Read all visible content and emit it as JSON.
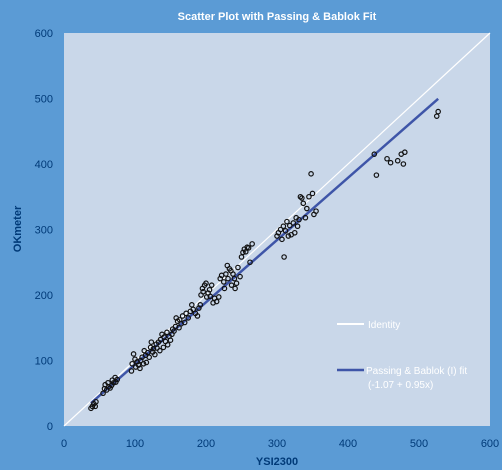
{
  "chart_data": {
    "type": "scatter",
    "title": "Scatter Plot with Passing & Bablok Fit",
    "xlabel": "YSI2300",
    "ylabel": "OKmeter",
    "xlim": [
      0,
      600
    ],
    "ylim": [
      0,
      600
    ],
    "xticks": [
      "0",
      "100",
      "200",
      "300",
      "400",
      "500",
      "600"
    ],
    "yticks": [
      "0",
      "100",
      "200",
      "300",
      "400",
      "500",
      "600"
    ],
    "grid": false,
    "legend_position": "bottom-right",
    "colors": {
      "background": "#5b9bd5",
      "plot_area": "#c9d7e9",
      "axis_text": "#003a78",
      "identity_line": "#ffffff",
      "fit_line": "#3e55a8",
      "points": "#111111"
    },
    "series": [
      {
        "name": "",
        "kind": "points",
        "points": [
          [
            38,
            27
          ],
          [
            40,
            30
          ],
          [
            42,
            34
          ],
          [
            44,
            30
          ],
          [
            45,
            37
          ],
          [
            55,
            50
          ],
          [
            57,
            57
          ],
          [
            58,
            63
          ],
          [
            60,
            55
          ],
          [
            62,
            66
          ],
          [
            63,
            60
          ],
          [
            65,
            58
          ],
          [
            67,
            62
          ],
          [
            68,
            70
          ],
          [
            70,
            66
          ],
          [
            72,
            74
          ],
          [
            73,
            67
          ],
          [
            75,
            71
          ],
          [
            95,
            84
          ],
          [
            96,
            95
          ],
          [
            98,
            110
          ],
          [
            100,
            102
          ],
          [
            101,
            90
          ],
          [
            103,
            98
          ],
          [
            105,
            93
          ],
          [
            107,
            88
          ],
          [
            108,
            100
          ],
          [
            110,
            105
          ],
          [
            112,
            95
          ],
          [
            113,
            115
          ],
          [
            115,
            108
          ],
          [
            116,
            97
          ],
          [
            118,
            112
          ],
          [
            120,
            105
          ],
          [
            122,
            120
          ],
          [
            123,
            128
          ],
          [
            125,
            113
          ],
          [
            126,
            118
          ],
          [
            128,
            109
          ],
          [
            130,
            125
          ],
          [
            131,
            119
          ],
          [
            133,
            128
          ],
          [
            135,
            115
          ],
          [
            136,
            132
          ],
          [
            138,
            140
          ],
          [
            140,
            120
          ],
          [
            141,
            136
          ],
          [
            143,
            129
          ],
          [
            145,
            143
          ],
          [
            146,
            124
          ],
          [
            148,
            137
          ],
          [
            150,
            131
          ],
          [
            152,
            140
          ],
          [
            153,
            148
          ],
          [
            155,
            145
          ],
          [
            157,
            152
          ],
          [
            158,
            165
          ],
          [
            160,
            160
          ],
          [
            162,
            150
          ],
          [
            163,
            162
          ],
          [
            165,
            156
          ],
          [
            167,
            168
          ],
          [
            170,
            158
          ],
          [
            172,
            172
          ],
          [
            175,
            165
          ],
          [
            178,
            175
          ],
          [
            180,
            185
          ],
          [
            182,
            178
          ],
          [
            185,
            172
          ],
          [
            188,
            168
          ],
          [
            190,
            180
          ],
          [
            192,
            185
          ],
          [
            193,
            200
          ],
          [
            195,
            210
          ],
          [
            196,
            205
          ],
          [
            198,
            215
          ],
          [
            200,
            218
          ],
          [
            201,
            197
          ],
          [
            203,
            203
          ],
          [
            205,
            208
          ],
          [
            206,
            198
          ],
          [
            208,
            215
          ],
          [
            210,
            188
          ],
          [
            212,
            195
          ],
          [
            215,
            190
          ],
          [
            218,
            197
          ],
          [
            220,
            225
          ],
          [
            222,
            230
          ],
          [
            225,
            220
          ],
          [
            226,
            210
          ],
          [
            228,
            232
          ],
          [
            230,
            245
          ],
          [
            231,
            225
          ],
          [
            233,
            240
          ],
          [
            235,
            237
          ],
          [
            236,
            215
          ],
          [
            238,
            232
          ],
          [
            240,
            225
          ],
          [
            241,
            210
          ],
          [
            243,
            218
          ],
          [
            245,
            242
          ],
          [
            248,
            228
          ],
          [
            250,
            258
          ],
          [
            252,
            265
          ],
          [
            254,
            270
          ],
          [
            256,
            266
          ],
          [
            258,
            273
          ],
          [
            260,
            272
          ],
          [
            262,
            250
          ],
          [
            265,
            278
          ],
          [
            300,
            290
          ],
          [
            302,
            295
          ],
          [
            305,
            300
          ],
          [
            307,
            285
          ],
          [
            309,
            305
          ],
          [
            310,
            258
          ],
          [
            312,
            298
          ],
          [
            314,
            312
          ],
          [
            316,
            290
          ],
          [
            318,
            306
          ],
          [
            320,
            292
          ],
          [
            323,
            310
          ],
          [
            325,
            295
          ],
          [
            327,
            318
          ],
          [
            329,
            305
          ],
          [
            331,
            315
          ],
          [
            333,
            350
          ],
          [
            335,
            348
          ],
          [
            337,
            340
          ],
          [
            340,
            318
          ],
          [
            342,
            332
          ],
          [
            345,
            350
          ],
          [
            348,
            385
          ],
          [
            350,
            355
          ],
          [
            352,
            323
          ],
          [
            355,
            328
          ],
          [
            437,
            415
          ],
          [
            440,
            383
          ],
          [
            455,
            408
          ],
          [
            460,
            402
          ],
          [
            470,
            405
          ],
          [
            475,
            415
          ],
          [
            478,
            400
          ],
          [
            480,
            418
          ],
          [
            525,
            473
          ],
          [
            527,
            480
          ]
        ]
      },
      {
        "name": "Identity",
        "kind": "line",
        "points": [
          [
            0,
            0
          ],
          [
            600,
            600
          ]
        ]
      },
      {
        "name": "Passing & Bablok (I) fit",
        "sublabel": "(-1.07 + 0.95x)",
        "kind": "line",
        "points": [
          [
            38,
            35.03
          ],
          [
            527,
            499.58
          ]
        ]
      }
    ]
  }
}
